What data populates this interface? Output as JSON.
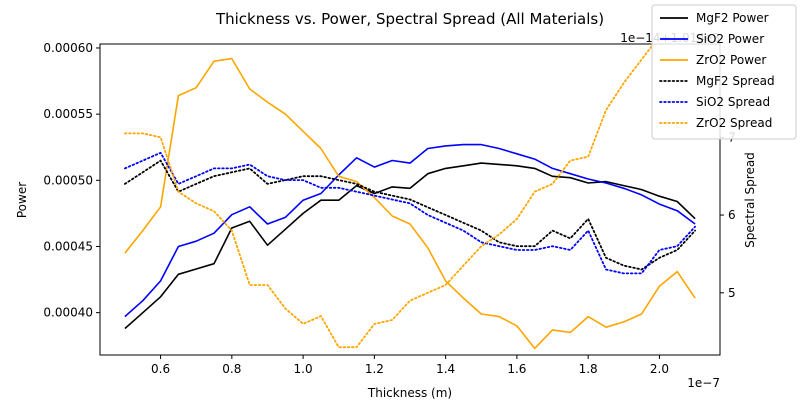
{
  "chart_data": {
    "type": "line",
    "title": "Thickness vs. Power, Spectral Spread (All Materials)",
    "xlabel": "Thickness (m)",
    "ylabel_left": "Power",
    "ylabel_right": "Spectral Spread",
    "x_scale_text": "1e−7",
    "right_offset_text": "1e−14+1.014e3",
    "xlim": [
      0.43,
      2.17
    ],
    "ylim_left": [
      0.000368,
      0.000603
    ],
    "ylim_right": [
      4.2,
      8.2
    ],
    "x_ticks": [
      0.6,
      0.8,
      1.0,
      1.2,
      1.4,
      1.6,
      1.8,
      2.0
    ],
    "x_tick_labels": [
      "0.6",
      "0.8",
      "1.0",
      "1.2",
      "1.4",
      "1.6",
      "1.8",
      "2.0"
    ],
    "y_left_ticks": [
      0.0004,
      0.00045,
      0.0005,
      0.00055,
      0.0006
    ],
    "y_left_tick_labels": [
      "0.00040",
      "0.00045",
      "0.00050",
      "0.00055",
      "0.00060"
    ],
    "y_right_ticks": [
      5,
      6,
      7
    ],
    "y_right_tick_labels": [
      "5",
      "6",
      "7"
    ],
    "legend_location": "top-right",
    "x": [
      0.5,
      0.55,
      0.6,
      0.65,
      0.7,
      0.75,
      0.8,
      0.85,
      0.9,
      0.95,
      1.0,
      1.05,
      1.1,
      1.15,
      1.2,
      1.25,
      1.3,
      1.35,
      1.4,
      1.45,
      1.5,
      1.55,
      1.6,
      1.65,
      1.7,
      1.75,
      1.8,
      1.85,
      1.9,
      1.95,
      2.0,
      2.05,
      2.1
    ],
    "series": [
      {
        "name": "MgF2 Power",
        "axis": "left",
        "style": "solid",
        "color": "#000000",
        "values": [
          0.000388,
          0.0004,
          0.000412,
          0.000429,
          0.000433,
          0.000437,
          0.000464,
          0.000469,
          0.000451,
          0.000463,
          0.000475,
          0.000485,
          0.000485,
          0.000496,
          0.00049,
          0.000495,
          0.000494,
          0.000505,
          0.000509,
          0.000511,
          0.000513,
          0.000512,
          0.000511,
          0.000509,
          0.000503,
          0.000502,
          0.000498,
          0.000499,
          0.000496,
          0.000493,
          0.000488,
          0.000484,
          0.000471
        ]
      },
      {
        "name": "SiO2 Power",
        "axis": "left",
        "style": "solid",
        "color": "#0000ff",
        "values": [
          0.000397,
          0.000409,
          0.000424,
          0.00045,
          0.000454,
          0.00046,
          0.000474,
          0.00048,
          0.000467,
          0.000472,
          0.000485,
          0.00049,
          0.000504,
          0.000517,
          0.00051,
          0.000515,
          0.000513,
          0.000524,
          0.000526,
          0.000527,
          0.000527,
          0.000524,
          0.00052,
          0.000516,
          0.000509,
          0.000505,
          0.000501,
          0.000498,
          0.000494,
          0.000489,
          0.000482,
          0.000477,
          0.000467
        ]
      },
      {
        "name": "ZrO2 Power",
        "axis": "left",
        "style": "solid",
        "color": "#ffa500",
        "values": [
          0.000445,
          0.000462,
          0.00048,
          0.000564,
          0.00057,
          0.00059,
          0.000592,
          0.000569,
          0.000559,
          0.00055,
          0.000537,
          0.000524,
          0.000503,
          0.000499,
          0.000487,
          0.000473,
          0.000467,
          0.000449,
          0.000424,
          0.000411,
          0.000399,
          0.000397,
          0.00039,
          0.000373,
          0.000387,
          0.000385,
          0.000397,
          0.000389,
          0.000393,
          0.000399,
          0.00042,
          0.000431,
          0.000411
        ]
      },
      {
        "name": "MgF2 Spread",
        "axis": "right",
        "style": "dotted",
        "color": "#000000",
        "values": [
          6.4,
          6.55,
          6.7,
          6.3,
          6.4,
          6.5,
          6.55,
          6.6,
          6.4,
          6.45,
          6.5,
          6.5,
          6.45,
          6.4,
          6.3,
          6.25,
          6.2,
          6.1,
          6.0,
          5.9,
          5.8,
          5.65,
          5.6,
          5.6,
          5.8,
          5.7,
          5.95,
          5.45,
          5.35,
          5.3,
          5.45,
          5.55,
          5.8
        ]
      },
      {
        "name": "SiO2 Spread",
        "axis": "right",
        "style": "dotted",
        "color": "#0000ff",
        "values": [
          6.6,
          6.7,
          6.8,
          6.4,
          6.5,
          6.6,
          6.6,
          6.65,
          6.5,
          6.45,
          6.45,
          6.35,
          6.35,
          6.3,
          6.25,
          6.2,
          6.15,
          6.0,
          5.9,
          5.8,
          5.65,
          5.6,
          5.55,
          5.55,
          5.6,
          5.55,
          5.8,
          5.3,
          5.25,
          5.25,
          5.55,
          5.6,
          5.85
        ]
      },
      {
        "name": "ZrO2 Spread",
        "axis": "right",
        "style": "dotted",
        "color": "#ffa500",
        "values": [
          7.05,
          7.05,
          7.0,
          6.3,
          6.15,
          6.05,
          5.8,
          5.1,
          5.1,
          4.8,
          4.6,
          4.7,
          4.3,
          4.3,
          4.6,
          4.65,
          4.9,
          5.0,
          5.1,
          5.35,
          5.6,
          5.75,
          5.95,
          6.3,
          6.4,
          6.7,
          6.75,
          7.35,
          7.7,
          8.0,
          8.3,
          8.4,
          8.45
        ]
      }
    ]
  }
}
